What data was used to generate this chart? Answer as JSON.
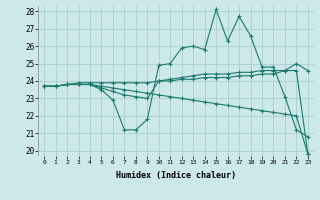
{
  "xlabel": "Humidex (Indice chaleur)",
  "ylabel": "",
  "x": [
    0,
    1,
    2,
    3,
    4,
    5,
    6,
    7,
    8,
    9,
    10,
    11,
    12,
    13,
    14,
    15,
    16,
    17,
    18,
    19,
    20,
    21,
    22,
    23
  ],
  "line1": [
    23.7,
    23.7,
    23.8,
    23.8,
    23.8,
    23.5,
    22.9,
    21.2,
    21.2,
    21.8,
    24.9,
    25.0,
    25.9,
    26.0,
    25.8,
    28.1,
    26.3,
    27.7,
    26.6,
    24.8,
    24.8,
    23.1,
    21.2,
    20.8
  ],
  "line2": [
    23.7,
    23.7,
    23.8,
    23.8,
    23.8,
    23.7,
    23.6,
    23.5,
    23.4,
    23.3,
    23.2,
    23.1,
    23.0,
    22.9,
    22.8,
    22.7,
    22.6,
    22.5,
    22.4,
    22.3,
    22.2,
    22.1,
    22.0,
    19.8
  ],
  "line3": [
    23.7,
    23.7,
    23.8,
    23.8,
    23.8,
    23.6,
    23.4,
    23.2,
    23.1,
    23.0,
    24.0,
    24.1,
    24.2,
    24.3,
    24.4,
    24.4,
    24.4,
    24.5,
    24.5,
    24.6,
    24.6,
    24.6,
    24.6,
    19.8
  ],
  "line4": [
    23.7,
    23.7,
    23.8,
    23.9,
    23.9,
    23.9,
    23.9,
    23.9,
    23.9,
    23.9,
    24.0,
    24.0,
    24.1,
    24.1,
    24.2,
    24.2,
    24.2,
    24.3,
    24.3,
    24.4,
    24.4,
    24.6,
    25.0,
    24.6
  ],
  "line_color": "#1a7a6e",
  "bg_color": "#cce8e8",
  "grid_color": "#aacfcf",
  "ylim": [
    20,
    28
  ],
  "xlim": [
    -0.5,
    23.5
  ],
  "yticks": [
    20,
    21,
    22,
    23,
    24,
    25,
    26,
    27,
    28
  ],
  "xticks": [
    0,
    1,
    2,
    3,
    4,
    5,
    6,
    7,
    8,
    9,
    10,
    11,
    12,
    13,
    14,
    15,
    16,
    17,
    18,
    19,
    20,
    21,
    22,
    23
  ]
}
